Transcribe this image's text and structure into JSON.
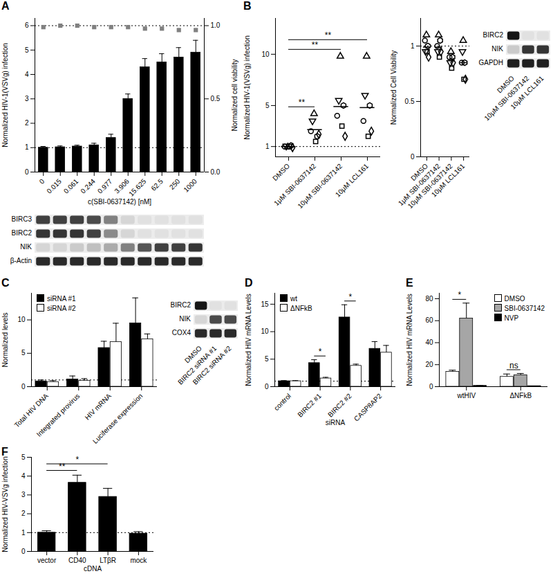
{
  "chart_data": [
    {
      "panel": "A",
      "type": "bar",
      "categories": [
        "0",
        "0.015",
        "0.061",
        "0.244",
        "0.977",
        "3.906",
        "15.625",
        "62.5",
        "250",
        "1000"
      ],
      "values": [
        1.0,
        1.02,
        1.05,
        1.1,
        1.4,
        3.0,
        4.3,
        4.5,
        4.7,
        4.9
      ],
      "errors": [
        0.05,
        0.05,
        0.05,
        0.08,
        0.15,
        0.2,
        0.35,
        0.35,
        0.4,
        0.5
      ],
      "color": "#000000",
      "xlabel": "c(SBI-0637142) [nM]",
      "ylabel": "Normalized HIV-1(VSVg) infection",
      "ylim": [
        0,
        6.3
      ],
      "yticks": [
        0,
        1,
        2,
        3,
        4,
        5,
        6
      ],
      "reference_lines": [
        1
      ],
      "viability": {
        "type": "scatter",
        "marker": "square",
        "color": "#808080",
        "axis": "y2",
        "values": [
          0.99,
          1.0,
          1.0,
          0.99,
          0.99,
          0.99,
          0.98,
          0.98,
          0.97,
          0.97
        ]
      },
      "y2label": "Normalized cell viability",
      "y2lim": [
        0,
        1.05
      ],
      "y2ticks": [
        {
          "value": 0,
          "label": "0.0"
        },
        {
          "value": 0.5,
          "label": "0.5"
        },
        {
          "value": 1,
          "label": "1.0"
        }
      ],
      "y2_reference_lines": [
        1
      ]
    },
    {
      "type": "blot",
      "rows": [
        "BIRC3",
        "BIRC2",
        "NIK",
        "β-Actin"
      ],
      "bands": [
        [
          0.8,
          0.8,
          0.8,
          0.75,
          0.5,
          0.1,
          0.05,
          0.05,
          0.05,
          0.05
        ],
        [
          0.85,
          0.85,
          0.85,
          0.8,
          0.45,
          0.1,
          0.05,
          0.05,
          0.05,
          0.05
        ],
        [
          0.1,
          0.1,
          0.15,
          0.2,
          0.3,
          0.5,
          0.7,
          0.8,
          0.8,
          0.85
        ],
        [
          0.9,
          0.9,
          0.9,
          0.9,
          0.9,
          0.9,
          0.9,
          0.9,
          0.9,
          0.9
        ]
      ]
    },
    {
      "panel": "B",
      "type": "scatter",
      "categories": [
        "DMSO",
        "1μM SBI-0637142",
        "10μM SBI-0637142",
        "10μM LCL161"
      ],
      "ylabel": "Normalized HIV-1(VSVg) infection",
      "ylim": [
        0,
        13.5
      ],
      "yticks": [
        1,
        5,
        10
      ],
      "reference_lines": [
        1
      ],
      "color": "#000000",
      "series": [
        {
          "marker": "circle",
          "values": [
            1.0,
            2.5,
            4.0,
            3.5
          ]
        },
        {
          "marker": "triangle-down",
          "values": [
            1.05,
            3.5,
            5.5,
            6.0
          ]
        },
        {
          "marker": "triangle",
          "values": [
            0.95,
            4.2,
            9.8,
            9.8
          ]
        },
        {
          "marker": "square",
          "values": [
            1.0,
            1.5,
            3.0,
            2.0
          ]
        },
        {
          "marker": "hexagon",
          "values": [
            1.1,
            2.0,
            5.0,
            5.0
          ]
        },
        {
          "marker": "diamond",
          "values": [
            0.9,
            2.2,
            2.0,
            2.5
          ]
        }
      ],
      "means": [
        1.0,
        2.65,
        4.9,
        4.8
      ],
      "annotations": [
        {
          "from": "DMSO",
          "to": "1μM SBI-0637142",
          "text": "**"
        },
        {
          "from": "DMSO",
          "to": "10μM SBI-0637142",
          "text": "**"
        },
        {
          "from": "DMSO",
          "to": "10μM LCL161",
          "text": "**"
        }
      ]
    },
    {
      "type": "scatter",
      "categories": [
        "DMSO",
        "1μM SBI-0637142",
        "10μM SBI-0637142",
        "10μM LCL161"
      ],
      "ylabel": "Normalized Cell Viability",
      "ylim": [
        0,
        1.25
      ],
      "yticks": [
        0,
        0.5,
        1
      ],
      "reference_lines": [
        1
      ],
      "color": "#000000",
      "series": [
        {
          "marker": "circle",
          "values": [
            1.05,
            1.0,
            0.9,
            0.85
          ]
        },
        {
          "marker": "triangle-down",
          "values": [
            0.95,
            0.95,
            0.85,
            0.95
          ]
        },
        {
          "marker": "triangle",
          "values": [
            1.1,
            1.1,
            0.95,
            1.05
          ]
        },
        {
          "marker": "square",
          "values": [
            0.95,
            0.9,
            0.8,
            0.7
          ]
        },
        {
          "marker": "hexagon",
          "values": [
            1.0,
            1.05,
            0.9,
            0.85
          ]
        },
        {
          "marker": "diamond",
          "values": [
            0.9,
            0.95,
            0.85,
            0.7
          ]
        }
      ],
      "means": [
        0.99,
        0.99,
        0.88,
        0.85
      ]
    },
    {
      "type": "blot",
      "rows": [
        "BIRC2",
        "NIK",
        "GAPDH"
      ],
      "lanes": [
        "DMSO",
        "10μM SBI-0637142",
        "10μM LCL161"
      ],
      "bands": [
        [
          1,
          0.05,
          0.05
        ],
        [
          0.15,
          0.85,
          0.85
        ],
        [
          0.95,
          0.95,
          0.95
        ]
      ]
    },
    {
      "panel": "C",
      "type": "bar",
      "categories": [
        "Total HIV DNA",
        "Integrated provirus",
        "HIV mRNA",
        "Luciferase expression"
      ],
      "ylabel": "Normalized levels",
      "ylim": [
        0,
        14
      ],
      "yticks": [
        0,
        5,
        10
      ],
      "reference_lines": [
        1
      ],
      "legend": "top-left",
      "series": [
        {
          "name": "siRNA #1",
          "color": "#000000",
          "values": [
            0.8,
            1.1,
            5.8,
            9.5
          ],
          "errors": [
            0.2,
            0.5,
            1.0,
            3.8
          ]
        },
        {
          "name": "siRNA #2",
          "color": "#ffffff",
          "values": [
            0.7,
            0.9,
            6.7,
            7.1
          ],
          "errors": [
            0.2,
            0.3,
            2.8,
            0.8
          ]
        }
      ]
    },
    {
      "type": "blot",
      "rows": [
        "BIRC2",
        "NIK",
        "COX4"
      ],
      "lanes": [
        "DMSO",
        "BIRC2 siRNA #1",
        "BIRC2 siRNA #2"
      ],
      "bands": [
        [
          1,
          0.05,
          0.05
        ],
        [
          0.1,
          0.75,
          0.75
        ],
        [
          0.9,
          0.9,
          0.9
        ]
      ]
    },
    {
      "panel": "D",
      "type": "bar",
      "categories": [
        "control",
        "BIRC2 #1",
        "BIRC2 #2",
        "CASP8AP2"
      ],
      "xlabel": "siRNA",
      "ylabel": "Normalized HIV mRNA Levels",
      "ylim": [
        0,
        17
      ],
      "yticks": [
        0,
        5,
        10,
        15
      ],
      "reference_lines": [
        1
      ],
      "legend": "top-left",
      "series": [
        {
          "name": "wt",
          "color": "#000000",
          "values": [
            1.0,
            4.3,
            12.6,
            6.9
          ],
          "errors": [
            0.1,
            0.6,
            2.3,
            1.3
          ]
        },
        {
          "name": "ΔNFkB",
          "color": "#ffffff",
          "values": [
            1.0,
            1.5,
            3.8,
            6.2
          ],
          "errors": [
            0.1,
            0.2,
            0.3,
            1.3
          ]
        }
      ],
      "annotations": [
        {
          "category": "BIRC2 #1",
          "text": "*"
        },
        {
          "category": "BIRC2 #2",
          "text": "*"
        }
      ]
    },
    {
      "panel": "E",
      "type": "bar",
      "categories": [
        "wtHIV",
        "ΔNFkB"
      ],
      "ylabel": "Normalized HIV mRNA Levels",
      "ylim": [
        0,
        85
      ],
      "yticks": [
        0,
        20,
        40,
        60,
        80
      ],
      "legend": "top-right",
      "series": [
        {
          "name": "DMSO",
          "color": "#ffffff",
          "values": [
            13.5,
            9.0
          ],
          "errors": [
            1.5,
            2.5
          ]
        },
        {
          "name": "SBI-0637142",
          "color": "#a6a6a6",
          "values": [
            62,
            10.5
          ],
          "errors": [
            14,
            1.5
          ]
        },
        {
          "name": "NVP",
          "color": "#000000",
          "values": [
            0.8,
            0.5
          ],
          "errors": [
            0.2,
            0.1
          ]
        }
      ],
      "annotations": [
        {
          "category": "wtHIV",
          "text": "*"
        },
        {
          "category": "ΔNFkB",
          "text": "ns"
        }
      ]
    },
    {
      "panel": "F",
      "type": "bar",
      "categories": [
        "vector",
        "CD40",
        "LTβR",
        "mock"
      ],
      "xlabel": "cDNA",
      "ylabel": "Normalized HIV-VSVg infection",
      "ylim": [
        0,
        5
      ],
      "yticks": [
        0,
        1,
        2,
        3,
        4,
        5
      ],
      "reference_lines": [
        1
      ],
      "color": "#000000",
      "values": [
        1.0,
        3.65,
        2.9,
        0.95
      ],
      "errors": [
        0.1,
        0.4,
        0.45,
        0.1
      ],
      "annotations": [
        {
          "from": "vector",
          "to": "CD40",
          "text": "**"
        },
        {
          "from": "vector",
          "to": "LTβR",
          "text": "*"
        }
      ]
    }
  ]
}
